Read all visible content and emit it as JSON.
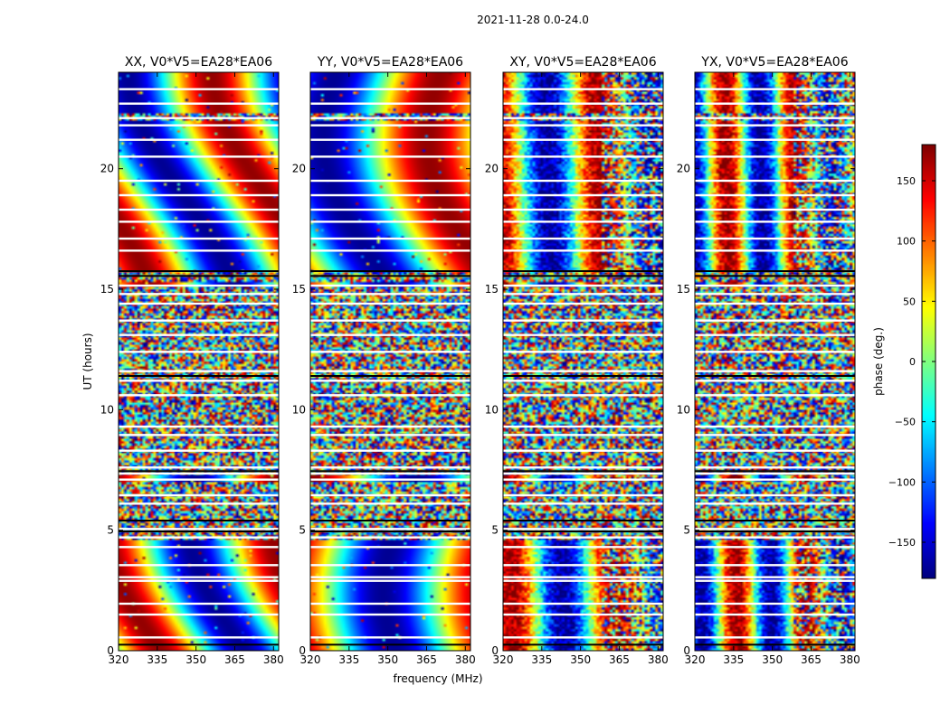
{
  "suptitle": "2021-11-28 0.0-24.0",
  "chart_data": {
    "type": "heatmap",
    "xlabel": "frequency (MHz)",
    "ylabel": "UT (hours)",
    "xlim": [
      320,
      382
    ],
    "ylim": [
      0,
      24
    ],
    "x_ticks": [
      320,
      335,
      350,
      365,
      380
    ],
    "y_ticks": [
      0,
      5,
      10,
      15,
      20
    ],
    "panels": [
      {
        "title": "XX, V0*V5=EA28*EA06",
        "pattern": "smooth",
        "phase0": 0.0,
        "slope": 1.0
      },
      {
        "title": "YY, V0*V5=EA28*EA06",
        "pattern": "smooth",
        "phase0": 2.0,
        "slope": -0.8
      },
      {
        "title": "XY, V0*V5=EA28*EA06",
        "pattern": "banded",
        "phase0": 1.0,
        "slope": 1.6
      },
      {
        "title": "YX, V0*V5=EA28*EA06",
        "pattern": "banded",
        "phase0": 4.0,
        "slope": 2.4
      }
    ],
    "colorbar": {
      "label": "phase (deg.)",
      "range": [
        -180,
        180
      ],
      "ticks": [
        150,
        100,
        50,
        0,
        -50,
        -100,
        -150
      ],
      "tick_labels": [
        "150",
        "100",
        "50",
        "0",
        "−50",
        "−100",
        "−150"
      ],
      "colormap": "jet"
    },
    "white_gap_hours": [
      0.55,
      1.5,
      1.95,
      2.9,
      3.05,
      3.55,
      4.3,
      4.7,
      5.05,
      6.1,
      6.45,
      7.1,
      7.35,
      7.6,
      8.3,
      8.95,
      9.3,
      10.6,
      11.2,
      11.6,
      12.4,
      13.1,
      13.7,
      14.4,
      14.8,
      15.15,
      16.6,
      17.1,
      17.8,
      18.3,
      18.9,
      19.5,
      20.5,
      21.2,
      21.8,
      22.1,
      22.7,
      23.3
    ],
    "black_line_hours": [
      0.25,
      4.95,
      5.4,
      7.45,
      11.4,
      15.55,
      15.75
    ],
    "segments": [
      {
        "from": 0.0,
        "to": 4.6,
        "state": "coherent"
      },
      {
        "from": 4.6,
        "to": 7.0,
        "state": "noise"
      },
      {
        "from": 7.0,
        "to": 7.35,
        "state": "coherent"
      },
      {
        "from": 7.35,
        "to": 15.1,
        "state": "noise"
      },
      {
        "from": 15.1,
        "to": 15.35,
        "state": "coherent"
      },
      {
        "from": 15.35,
        "to": 15.75,
        "state": "noise"
      },
      {
        "from": 15.75,
        "to": 22.0,
        "state": "coherent"
      },
      {
        "from": 22.0,
        "to": 22.3,
        "state": "noise"
      },
      {
        "from": 22.3,
        "to": 24.0,
        "state": "coherent"
      }
    ]
  }
}
